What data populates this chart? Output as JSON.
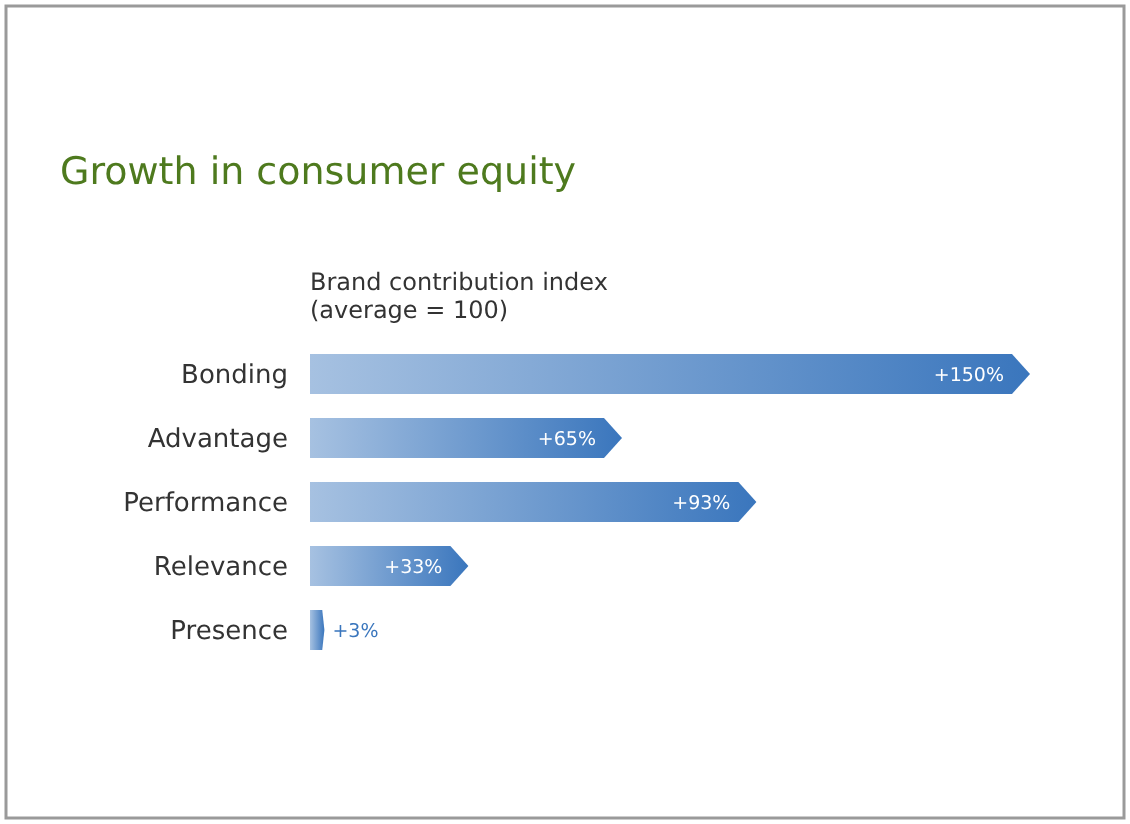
{
  "chart_data": {
    "type": "bar",
    "orientation": "horizontal",
    "title": "Growth in consumer equity",
    "subtitle": "Brand contribution index\n(average = 100)",
    "categories": [
      "Bonding",
      "Advantage",
      "Performance",
      "Relevance",
      "Presence"
    ],
    "values": [
      150,
      65,
      93,
      33,
      3
    ],
    "value_labels": [
      "+150%",
      "+65%",
      "+93%",
      "+33%",
      "+3%"
    ],
    "color": "#3a76bd"
  }
}
